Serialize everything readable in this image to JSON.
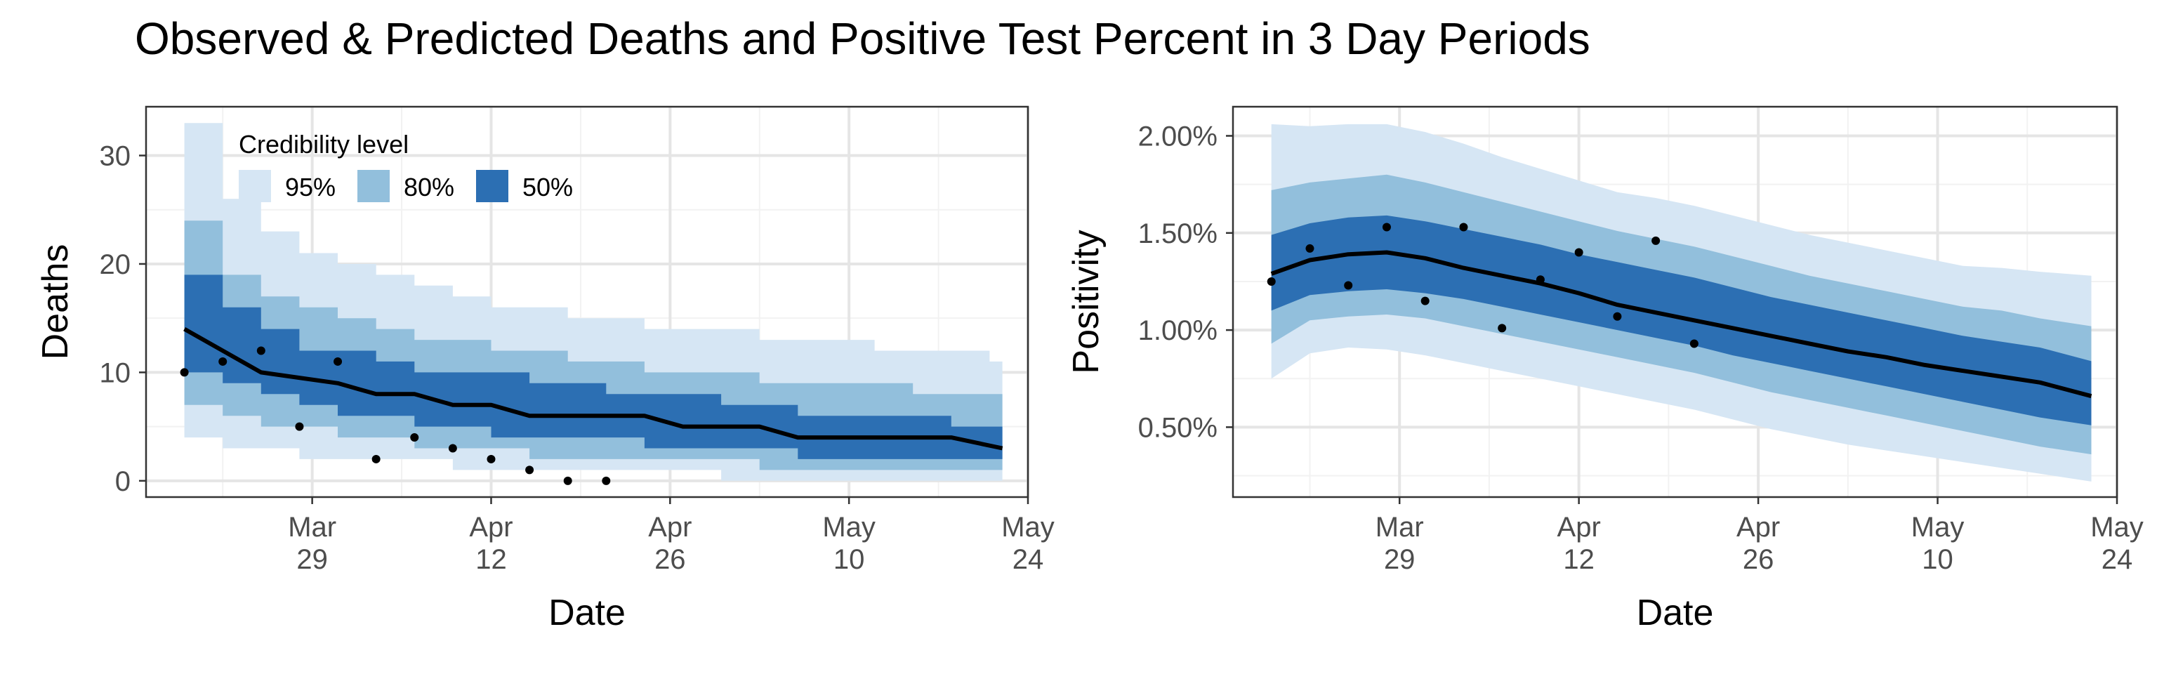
{
  "title": "Observed & Predicted Deaths and Positive Test Percent in 3 Day Periods",
  "colors": {
    "band95": "#d6e6f4",
    "band80": "#92bfdc",
    "band50": "#2c6fb3",
    "median": "#000000",
    "points": "#000000",
    "grid_major": "#e5e5e5",
    "grid_minor": "#f2f2f2",
    "panel_border": "#333333"
  },
  "legend": {
    "title": "Credibility level",
    "items": [
      {
        "label": "95%",
        "color": "#d6e6f4"
      },
      {
        "label": "80%",
        "color": "#92bfdc"
      },
      {
        "label": "50%",
        "color": "#2c6fb3"
      }
    ]
  },
  "chart_data": [
    {
      "type": "area",
      "panel": "deaths",
      "xlabel": "Date",
      "ylabel": "Deaths",
      "x_unit": "date",
      "xlim": [
        "2020-03-16",
        "2020-05-24"
      ],
      "ylim": [
        -1.5,
        34.5
      ],
      "x_ticks": [
        {
          "date": "2020-03-29",
          "label": [
            "Mar",
            "29"
          ]
        },
        {
          "date": "2020-04-12",
          "label": [
            "Apr",
            "12"
          ]
        },
        {
          "date": "2020-04-26",
          "label": [
            "Apr",
            "26"
          ]
        },
        {
          "date": "2020-05-10",
          "label": [
            "May",
            "10"
          ]
        },
        {
          "date": "2020-05-24",
          "label": [
            "May",
            "24"
          ]
        }
      ],
      "y_ticks": [
        {
          "value": 0,
          "label": "0"
        },
        {
          "value": 10,
          "label": "10"
        },
        {
          "value": 20,
          "label": "20"
        },
        {
          "value": 30,
          "label": "30"
        }
      ],
      "x": [
        "2020-03-19",
        "2020-03-22",
        "2020-03-25",
        "2020-03-28",
        "2020-03-31",
        "2020-04-03",
        "2020-04-06",
        "2020-04-09",
        "2020-04-12",
        "2020-04-15",
        "2020-04-18",
        "2020-04-21",
        "2020-04-24",
        "2020-04-27",
        "2020-04-30",
        "2020-05-03",
        "2020-05-06",
        "2020-05-09",
        "2020-05-12",
        "2020-05-15",
        "2020-05-18",
        "2020-05-21"
      ],
      "steps": [
        {
          "from": "2020-03-19",
          "to": "2020-03-22",
          "lo95": 4,
          "hi95": 33,
          "lo80": 7,
          "hi80": 24,
          "lo50": 10,
          "hi50": 19
        },
        {
          "from": "2020-03-22",
          "to": "2020-03-25",
          "lo95": 3,
          "hi95": 26,
          "lo80": 6,
          "hi80": 19,
          "lo50": 9,
          "hi50": 16
        },
        {
          "from": "2020-03-25",
          "to": "2020-03-28",
          "lo95": 3,
          "hi95": 23,
          "lo80": 5,
          "hi80": 17,
          "lo50": 8,
          "hi50": 14
        },
        {
          "from": "2020-03-28",
          "to": "2020-03-31",
          "lo95": 2,
          "hi95": 21,
          "lo80": 5,
          "hi80": 16,
          "lo50": 7,
          "hi50": 12
        },
        {
          "from": "2020-03-31",
          "to": "2020-04-03",
          "lo95": 2,
          "hi95": 20,
          "lo80": 4,
          "hi80": 15,
          "lo50": 6,
          "hi50": 12
        },
        {
          "from": "2020-04-03",
          "to": "2020-04-06",
          "lo95": 2,
          "hi95": 19,
          "lo80": 4,
          "hi80": 14,
          "lo50": 6,
          "hi50": 11
        },
        {
          "from": "2020-04-06",
          "to": "2020-04-09",
          "lo95": 2,
          "hi95": 18,
          "lo80": 3,
          "hi80": 13,
          "lo50": 5,
          "hi50": 10
        },
        {
          "from": "2020-04-09",
          "to": "2020-04-12",
          "lo95": 1,
          "hi95": 17,
          "lo80": 3,
          "hi80": 13,
          "lo50": 5,
          "hi50": 10
        },
        {
          "from": "2020-04-12",
          "to": "2020-04-15",
          "lo95": 1,
          "hi95": 16,
          "lo80": 3,
          "hi80": 12,
          "lo50": 4,
          "hi50": 10
        },
        {
          "from": "2020-04-15",
          "to": "2020-04-18",
          "lo95": 1,
          "hi95": 16,
          "lo80": 2,
          "hi80": 12,
          "lo50": 4,
          "hi50": 9
        },
        {
          "from": "2020-04-18",
          "to": "2020-04-21",
          "lo95": 1,
          "hi95": 15,
          "lo80": 2,
          "hi80": 11,
          "lo50": 4,
          "hi50": 9
        },
        {
          "from": "2020-04-21",
          "to": "2020-04-24",
          "lo95": 1,
          "hi95": 15,
          "lo80": 2,
          "hi80": 11,
          "lo50": 4,
          "hi50": 8
        },
        {
          "from": "2020-04-24",
          "to": "2020-04-27",
          "lo95": 1,
          "hi95": 14,
          "lo80": 2,
          "hi80": 10,
          "lo50": 3,
          "hi50": 8
        },
        {
          "from": "2020-04-27",
          "to": "2020-04-30",
          "lo95": 1,
          "hi95": 14,
          "lo80": 2,
          "hi80": 10,
          "lo50": 3,
          "hi50": 8
        },
        {
          "from": "2020-04-30",
          "to": "2020-05-03",
          "lo95": 0,
          "hi95": 14,
          "lo80": 2,
          "hi80": 10,
          "lo50": 3,
          "hi50": 7
        },
        {
          "from": "2020-05-03",
          "to": "2020-05-06",
          "lo95": 0,
          "hi95": 13,
          "lo80": 1,
          "hi80": 9,
          "lo50": 3,
          "hi50": 7
        },
        {
          "from": "2020-05-06",
          "to": "2020-05-09",
          "lo95": 0,
          "hi95": 13,
          "lo80": 1,
          "hi80": 9,
          "lo50": 2,
          "hi50": 6
        },
        {
          "from": "2020-05-09",
          "to": "2020-05-12",
          "lo95": 0,
          "hi95": 13,
          "lo80": 1,
          "hi80": 9,
          "lo50": 2,
          "hi50": 6
        },
        {
          "from": "2020-05-12",
          "to": "2020-05-15",
          "lo95": 0,
          "hi95": 12,
          "lo80": 1,
          "hi80": 9,
          "lo50": 2,
          "hi50": 6
        },
        {
          "from": "2020-05-15",
          "to": "2020-05-18",
          "lo95": 0,
          "hi95": 12,
          "lo80": 1,
          "hi80": 8,
          "lo50": 2,
          "hi50": 6
        },
        {
          "from": "2020-05-18",
          "to": "2020-05-21",
          "lo95": 0,
          "hi95": 12,
          "lo80": 1,
          "hi80": 8,
          "lo50": 2,
          "hi50": 5
        },
        {
          "from": "2020-05-21",
          "to": "2020-05-22",
          "lo95": 0,
          "hi95": 11,
          "lo80": 1,
          "hi80": 8,
          "lo50": 2,
          "hi50": 5
        }
      ],
      "median": [
        {
          "date": "2020-03-19",
          "y": 14
        },
        {
          "date": "2020-03-25",
          "y": 10
        },
        {
          "date": "2020-03-28",
          "y": 9.5
        },
        {
          "date": "2020-03-31",
          "y": 9
        },
        {
          "date": "2020-04-03",
          "y": 8
        },
        {
          "date": "2020-04-06",
          "y": 8
        },
        {
          "date": "2020-04-09",
          "y": 7
        },
        {
          "date": "2020-04-12",
          "y": 7
        },
        {
          "date": "2020-04-15",
          "y": 6
        },
        {
          "date": "2020-04-24",
          "y": 6
        },
        {
          "date": "2020-04-27",
          "y": 5
        },
        {
          "date": "2020-05-03",
          "y": 5
        },
        {
          "date": "2020-05-06",
          "y": 4
        },
        {
          "date": "2020-05-18",
          "y": 4
        },
        {
          "date": "2020-05-22",
          "y": 3
        }
      ],
      "observed": [
        {
          "date": "2020-03-19",
          "y": 10
        },
        {
          "date": "2020-03-22",
          "y": 11
        },
        {
          "date": "2020-03-25",
          "y": 12
        },
        {
          "date": "2020-03-28",
          "y": 5
        },
        {
          "date": "2020-03-31",
          "y": 11
        },
        {
          "date": "2020-04-03",
          "y": 2
        },
        {
          "date": "2020-04-06",
          "y": 4
        },
        {
          "date": "2020-04-09",
          "y": 3
        },
        {
          "date": "2020-04-12",
          "y": 2
        },
        {
          "date": "2020-04-15",
          "y": 1
        },
        {
          "date": "2020-04-18",
          "y": 0
        },
        {
          "date": "2020-04-21",
          "y": 0
        }
      ]
    },
    {
      "type": "area",
      "panel": "positivity",
      "xlabel": "Date",
      "ylabel": "Positivity",
      "x_unit": "date",
      "xlim": [
        "2020-03-16",
        "2020-05-24"
      ],
      "ylim": [
        0.14,
        2.15
      ],
      "y_unit": "percent",
      "x_ticks": [
        {
          "date": "2020-03-29",
          "label": [
            "Mar",
            "29"
          ]
        },
        {
          "date": "2020-04-12",
          "label": [
            "Apr",
            "12"
          ]
        },
        {
          "date": "2020-04-26",
          "label": [
            "Apr",
            "26"
          ]
        },
        {
          "date": "2020-05-10",
          "label": [
            "May",
            "10"
          ]
        },
        {
          "date": "2020-05-24",
          "label": [
            "May",
            "24"
          ]
        }
      ],
      "y_ticks": [
        {
          "value": 0.5,
          "label": "0.50%"
        },
        {
          "value": 1.0,
          "label": "1.00%"
        },
        {
          "value": 1.5,
          "label": "1.50%"
        },
        {
          "value": 2.0,
          "label": "2.00%"
        }
      ],
      "x": [
        "2020-03-19",
        "2020-03-22",
        "2020-03-25",
        "2020-03-28",
        "2020-03-31",
        "2020-04-03",
        "2020-04-06",
        "2020-04-09",
        "2020-04-12",
        "2020-04-15",
        "2020-04-18",
        "2020-04-21",
        "2020-04-24",
        "2020-04-27",
        "2020-04-30",
        "2020-05-03",
        "2020-05-06",
        "2020-05-09",
        "2020-05-12",
        "2020-05-15",
        "2020-05-18",
        "2020-05-22"
      ],
      "lo95": [
        0.75,
        0.88,
        0.91,
        0.9,
        0.87,
        0.83,
        0.79,
        0.75,
        0.71,
        0.67,
        0.63,
        0.59,
        0.54,
        0.49,
        0.45,
        0.41,
        0.38,
        0.35,
        0.32,
        0.29,
        0.26,
        0.22
      ],
      "hi95": [
        2.06,
        2.05,
        2.06,
        2.06,
        2.02,
        1.96,
        1.89,
        1.83,
        1.77,
        1.71,
        1.68,
        1.64,
        1.59,
        1.54,
        1.49,
        1.45,
        1.41,
        1.37,
        1.33,
        1.32,
        1.3,
        1.28
      ],
      "lo80": [
        0.93,
        1.05,
        1.07,
        1.08,
        1.06,
        1.02,
        0.98,
        0.94,
        0.9,
        0.86,
        0.82,
        0.78,
        0.73,
        0.68,
        0.64,
        0.6,
        0.56,
        0.52,
        0.48,
        0.44,
        0.4,
        0.36
      ],
      "hi80": [
        1.72,
        1.76,
        1.78,
        1.8,
        1.76,
        1.71,
        1.66,
        1.61,
        1.56,
        1.51,
        1.47,
        1.43,
        1.38,
        1.33,
        1.28,
        1.24,
        1.2,
        1.16,
        1.12,
        1.1,
        1.06,
        1.02
      ],
      "lo50": [
        1.1,
        1.18,
        1.2,
        1.21,
        1.19,
        1.16,
        1.12,
        1.08,
        1.04,
        1.0,
        0.96,
        0.92,
        0.87,
        0.83,
        0.79,
        0.75,
        0.71,
        0.67,
        0.63,
        0.59,
        0.55,
        0.51
      ],
      "hi50": [
        1.49,
        1.55,
        1.58,
        1.59,
        1.56,
        1.52,
        1.48,
        1.44,
        1.39,
        1.35,
        1.31,
        1.27,
        1.22,
        1.17,
        1.13,
        1.09,
        1.05,
        1.01,
        0.97,
        0.94,
        0.91,
        0.84
      ],
      "median": [
        1.29,
        1.36,
        1.39,
        1.4,
        1.37,
        1.32,
        1.28,
        1.24,
        1.19,
        1.13,
        1.09,
        1.05,
        1.01,
        0.97,
        0.93,
        0.89,
        0.86,
        0.82,
        0.79,
        0.76,
        0.73,
        0.66
      ],
      "observed": [
        {
          "date": "2020-03-19",
          "y": 1.25
        },
        {
          "date": "2020-03-22",
          "y": 1.42
        },
        {
          "date": "2020-03-25",
          "y": 1.23
        },
        {
          "date": "2020-03-28",
          "y": 1.53
        },
        {
          "date": "2020-03-31",
          "y": 1.15
        },
        {
          "date": "2020-04-03",
          "y": 1.53
        },
        {
          "date": "2020-04-06",
          "y": 1.01
        },
        {
          "date": "2020-04-09",
          "y": 1.26
        },
        {
          "date": "2020-04-12",
          "y": 1.4
        },
        {
          "date": "2020-04-15",
          "y": 1.07
        },
        {
          "date": "2020-04-18",
          "y": 1.46
        },
        {
          "date": "2020-04-21",
          "y": 0.93
        }
      ]
    }
  ]
}
